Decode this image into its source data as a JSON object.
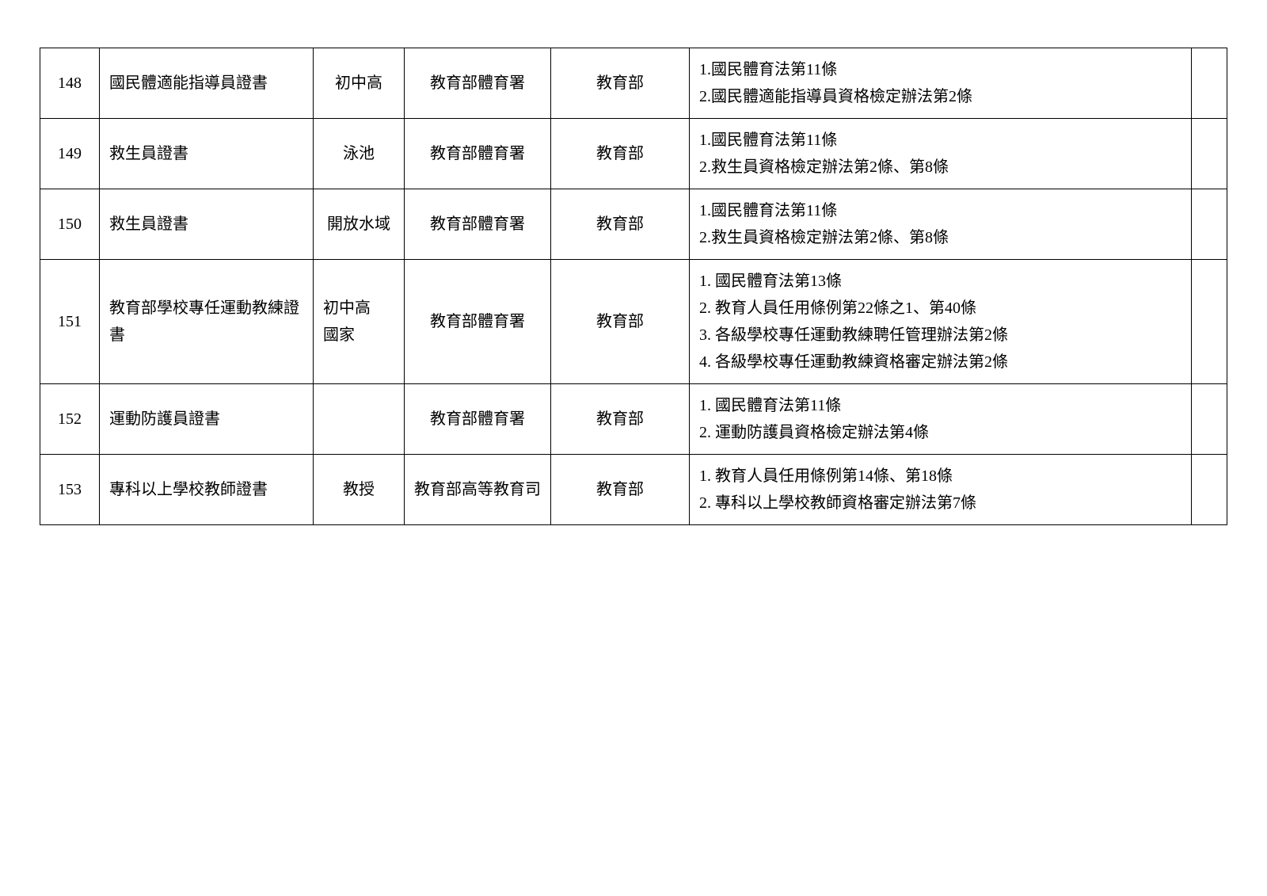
{
  "table": {
    "columns": {
      "num_width": 75,
      "name_width": 270,
      "level_width": 115,
      "agency_width": 185,
      "ministry_width": 175,
      "extra_width": 45
    },
    "styling": {
      "border_color": "#000000",
      "background_color": "#ffffff",
      "font_size": 20,
      "line_height": 1.7,
      "cell_padding": "10px 12px"
    },
    "rows": [
      {
        "num": "148",
        "name": "國民體適能指導員證書",
        "level": "初中高",
        "agency": "教育部體育署",
        "ministry": "教育部",
        "basis": [
          "1.國民體育法第11條",
          "2.國民體適能指導員資格檢定辦法第2條"
        ],
        "extra": ""
      },
      {
        "num": "149",
        "name": "救生員證書",
        "level": "泳池",
        "agency": "教育部體育署",
        "ministry": "教育部",
        "basis": [
          "1.國民體育法第11條",
          "2.救生員資格檢定辦法第2條、第8條"
        ],
        "extra": ""
      },
      {
        "num": "150",
        "name": "救生員證書",
        "level": "開放水域",
        "agency": "教育部體育署",
        "ministry": "教育部",
        "basis": [
          "1.國民體育法第11條",
          "2.救生員資格檢定辦法第2條、第8條"
        ],
        "extra": ""
      },
      {
        "num": "151",
        "name": "教育部學校專任運動教練證書",
        "level": "初中高\n國家",
        "agency": "教育部體育署",
        "ministry": "教育部",
        "basis": [
          "1. 國民體育法第13條",
          "2. 教育人員任用條例第22條之1、第40條",
          "3. 各級學校專任運動教練聘任管理辦法第2條",
          "4. 各級學校專任運動教練資格審定辦法第2條"
        ],
        "extra": ""
      },
      {
        "num": "152",
        "name": "運動防護員證書",
        "level": "",
        "agency": "教育部體育署",
        "ministry": "教育部",
        "basis": [
          "1. 國民體育法第11條",
          "2. 運動防護員資格檢定辦法第4條"
        ],
        "extra": ""
      },
      {
        "num": "153",
        "name": "專科以上學校教師證書",
        "level": "教授",
        "agency": "教育部高等教育司",
        "ministry": "教育部",
        "basis": [
          "1. 教育人員任用條例第14條、第18條",
          "2. 專科以上學校教師資格審定辦法第7條"
        ],
        "extra": ""
      }
    ]
  }
}
